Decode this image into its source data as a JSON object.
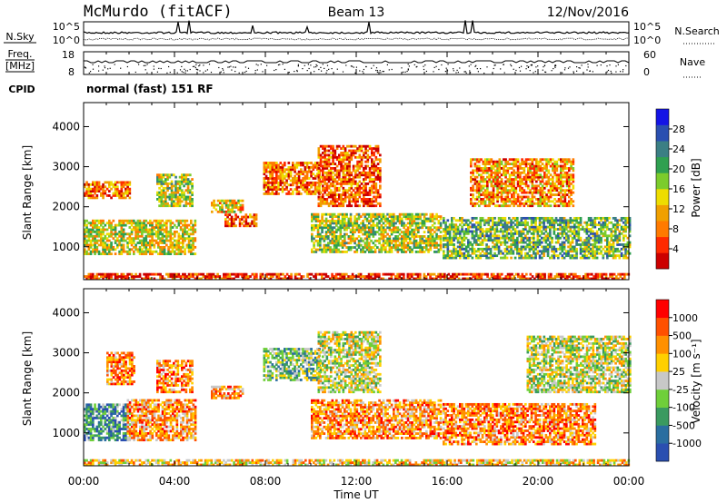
{
  "header": {
    "station": "McMurdo (fitACF)",
    "beam": "Beam 13",
    "date": "12/Nov/2016",
    "cpid_label": "CPID",
    "cpid_value": "normal (fast) 151 RF"
  },
  "noise_panel": {
    "left_label": "N.Sky",
    "right_label": "N.Search",
    "left_ticks": [
      "10^5",
      "10^0"
    ],
    "right_ticks": [
      "10^5",
      "10^0"
    ]
  },
  "freq_panel": {
    "left_label_top": "Freq.",
    "left_label_unit": "[MHz]",
    "left_ticks": [
      "18",
      "8"
    ],
    "right_label": "Nave",
    "right_ticks": [
      "60",
      "0"
    ]
  },
  "x_axis": {
    "label": "Time UT",
    "ticks": [
      "00:00",
      "04:00",
      "08:00",
      "12:00",
      "16:00",
      "20:00",
      "00:00"
    ]
  },
  "chart_data": [
    {
      "type": "heatmap",
      "name": "power",
      "ylabel": "Slant Range [km]",
      "yticks": [
        1000,
        2000,
        3000,
        4000
      ],
      "ylim": [
        180,
        4600
      ],
      "xlim_hours": [
        0,
        24
      ],
      "colorbar_label": "Power [dB]",
      "colorbar_ticks": [
        "28",
        "24",
        "20",
        "16",
        "12",
        "8",
        "4"
      ],
      "colorbar_colors": [
        "#cc0000",
        "#ff2a00",
        "#ff7a00",
        "#f0a000",
        "#eedd00",
        "#7ccc2c",
        "#2fa050",
        "#3b7f84",
        "#2a4fb0",
        "#1414e6"
      ],
      "regions": [
        {
          "t": [
            0.0,
            4.9
          ],
          "r": [
            800,
            1650
          ],
          "level": 0.45
        },
        {
          "t": [
            0.0,
            2.0
          ],
          "r": [
            2200,
            2600
          ],
          "level": 0.25
        },
        {
          "t": [
            3.2,
            4.8
          ],
          "r": [
            2000,
            2800
          ],
          "level": 0.5
        },
        {
          "t": [
            5.6,
            7.0
          ],
          "r": [
            1850,
            2150
          ],
          "level": 0.4
        },
        {
          "t": [
            6.2,
            7.6
          ],
          "r": [
            1500,
            1800
          ],
          "level": 0.2
        },
        {
          "t": [
            7.9,
            10.4
          ],
          "r": [
            2300,
            3100
          ],
          "level": 0.25
        },
        {
          "t": [
            10.0,
            15.7
          ],
          "r": [
            850,
            1800
          ],
          "level": 0.5
        },
        {
          "t": [
            10.3,
            13.0
          ],
          "r": [
            2000,
            3500
          ],
          "level": 0.2
        },
        {
          "t": [
            15.8,
            24.0
          ],
          "r": [
            700,
            1700
          ],
          "level": 0.6
        },
        {
          "t": [
            17.0,
            21.5
          ],
          "r": [
            2000,
            3200
          ],
          "level": 0.3
        },
        {
          "t": [
            0.0,
            24.0
          ],
          "r": [
            180,
            300
          ],
          "level": 0.15
        }
      ]
    },
    {
      "type": "heatmap",
      "name": "velocity",
      "ylabel": "Slant Range [km]",
      "yticks": [
        1000,
        2000,
        3000,
        4000
      ],
      "ylim": [
        180,
        4600
      ],
      "xlim_hours": [
        0,
        24
      ],
      "colorbar_label": "Velocity [m s⁻¹]",
      "colorbar_ticks": [
        "1000",
        "500",
        "100",
        "25",
        "-25",
        "-100",
        "-500",
        "-1000"
      ],
      "colorbar_colors": [
        "#2a4fb0",
        "#2a6ea0",
        "#3a9a60",
        "#6fcf3a",
        "#c8c8c8",
        "#ffd000",
        "#ff9000",
        "#ff5000",
        "#ff0000"
      ],
      "regions": [
        {
          "t": [
            0.0,
            2.0
          ],
          "r": [
            800,
            1700
          ],
          "level": 0.25
        },
        {
          "t": [
            1.9,
            4.9
          ],
          "r": [
            800,
            1800
          ],
          "level": 0.7
        },
        {
          "t": [
            3.2,
            4.8
          ],
          "r": [
            2000,
            2800
          ],
          "level": 0.75
        },
        {
          "t": [
            1.0,
            2.2
          ],
          "r": [
            2200,
            3000
          ],
          "level": 0.75
        },
        {
          "t": [
            5.6,
            7.0
          ],
          "r": [
            1850,
            2150
          ],
          "level": 0.7
        },
        {
          "t": [
            7.9,
            10.4
          ],
          "r": [
            2300,
            3100
          ],
          "level": 0.4
        },
        {
          "t": [
            10.0,
            15.7
          ],
          "r": [
            850,
            1800
          ],
          "level": 0.72
        },
        {
          "t": [
            10.3,
            13.0
          ],
          "r": [
            2000,
            3500
          ],
          "level": 0.5
        },
        {
          "t": [
            15.8,
            22.5
          ],
          "r": [
            700,
            1700
          ],
          "level": 0.75
        },
        {
          "t": [
            19.5,
            24.0
          ],
          "r": [
            2000,
            3400
          ],
          "level": 0.5
        },
        {
          "t": [
            0.0,
            24.0
          ],
          "r": [
            180,
            300
          ],
          "level": 0.6
        }
      ]
    }
  ]
}
